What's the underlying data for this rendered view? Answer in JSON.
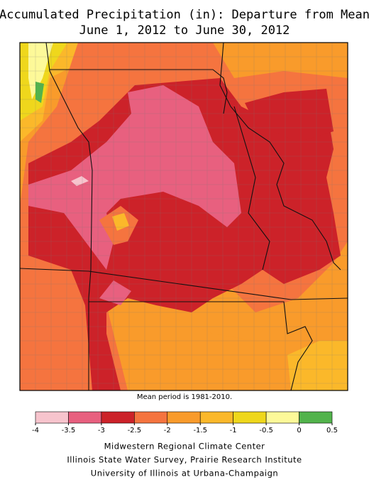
{
  "header": {
    "title_lines": [
      "Accumulated Precipitation (in): Departure from Mean",
      "June 1, 2012 to June 30, 2012"
    ]
  },
  "map": {
    "note": "Mean period is 1981-2010."
  },
  "legend": {
    "ticks": [
      -4,
      -3.5,
      -3,
      -2.5,
      -2,
      -1.5,
      -1,
      -0.5,
      0,
      0.5
    ],
    "colors": [
      "#f7c4cd",
      "#e8607f",
      "#cc2229",
      "#f5743f",
      "#f99b2b",
      "#fbb82a",
      "#efd71c",
      "#fdf999",
      "#52b34c"
    ]
  },
  "credits": [
    "Midwestern Regional Climate Center",
    "Illinois State Water Survey, Prairie Research Institute",
    "University of Illinois at Urbana-Champaign"
  ]
}
